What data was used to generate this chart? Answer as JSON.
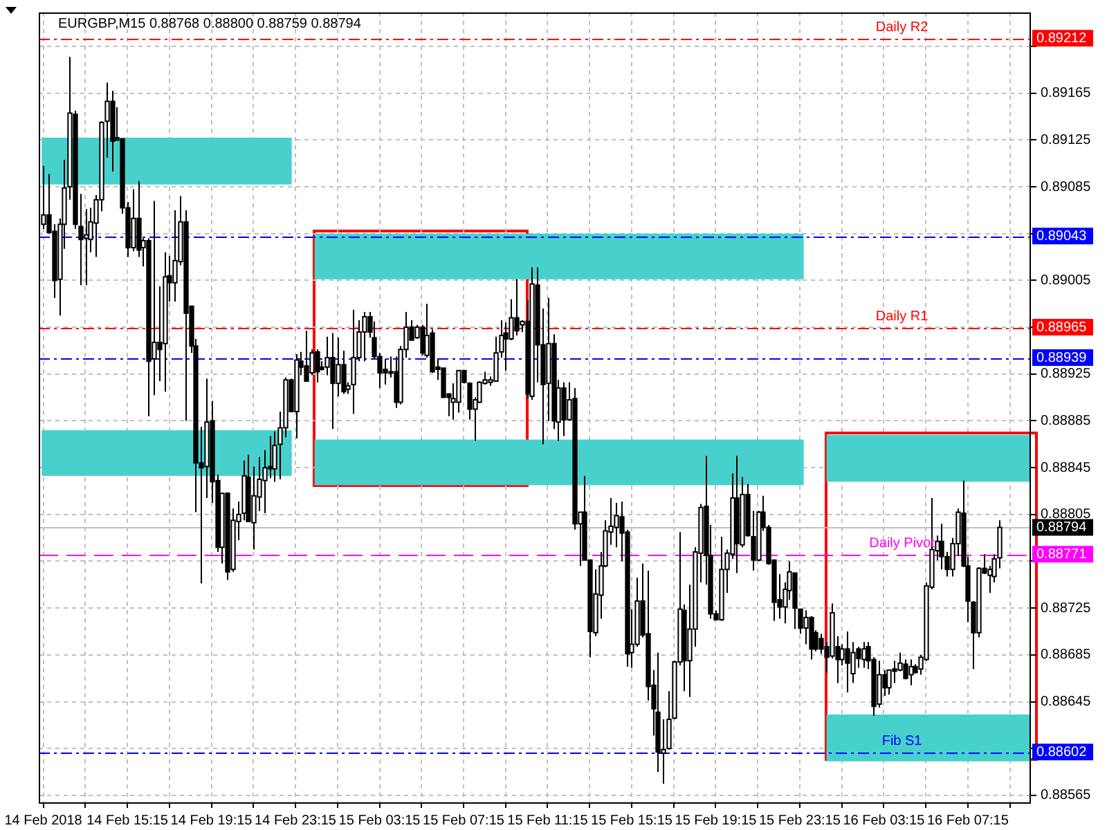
{
  "chart_data": {
    "type": "candlestick",
    "title": "EURGBP,M15 0.88768 0.88800 0.88759 0.88794",
    "x": [
      "2018-02-14T11:15",
      "2018-02-14T11:30",
      "2018-02-14T11:45",
      "2018-02-14T12:00",
      "2018-02-14T12:15",
      "2018-02-14T12:30",
      "2018-02-14T12:45",
      "2018-02-14T13:00",
      "2018-02-14T13:15",
      "2018-02-14T13:30",
      "2018-02-14T13:45",
      "2018-02-14T14:00",
      "2018-02-14T14:15",
      "2018-02-14T14:30",
      "2018-02-14T14:45",
      "2018-02-14T15:00",
      "2018-02-14T15:15",
      "2018-02-14T15:30",
      "2018-02-14T15:45",
      "2018-02-14T16:00",
      "2018-02-14T16:15",
      "2018-02-14T16:30",
      "2018-02-14T16:45",
      "2018-02-14T17:00",
      "2018-02-14T17:15",
      "2018-02-14T17:30",
      "2018-02-14T17:45",
      "2018-02-14T18:00",
      "2018-02-14T18:15",
      "2018-02-14T18:30",
      "2018-02-14T18:45",
      "2018-02-14T19:00",
      "2018-02-14T19:15",
      "2018-02-14T19:30",
      "2018-02-14T19:45",
      "2018-02-14T20:00",
      "2018-02-14T20:15",
      "2018-02-14T20:30",
      "2018-02-14T20:45",
      "2018-02-14T21:00",
      "2018-02-14T21:15",
      "2018-02-14T21:30",
      "2018-02-14T21:45",
      "2018-02-14T22:00",
      "2018-02-14T22:15",
      "2018-02-14T22:30",
      "2018-02-14T22:45",
      "2018-02-14T23:00",
      "2018-02-14T23:15",
      "2018-02-14T23:30",
      "2018-02-14T23:45",
      "2018-02-15T00:00",
      "2018-02-15T00:15",
      "2018-02-15T00:30",
      "2018-02-15T00:45",
      "2018-02-15T01:00",
      "2018-02-15T01:15",
      "2018-02-15T01:30",
      "2018-02-15T01:45",
      "2018-02-15T02:00",
      "2018-02-15T02:15",
      "2018-02-15T02:30",
      "2018-02-15T02:45",
      "2018-02-15T03:00",
      "2018-02-15T03:15",
      "2018-02-15T03:30",
      "2018-02-15T03:45",
      "2018-02-15T04:00",
      "2018-02-15T04:15",
      "2018-02-15T04:30",
      "2018-02-15T04:45",
      "2018-02-15T05:00",
      "2018-02-15T05:15",
      "2018-02-15T05:30",
      "2018-02-15T05:45",
      "2018-02-15T06:00",
      "2018-02-15T06:15",
      "2018-02-15T06:30",
      "2018-02-15T06:45",
      "2018-02-15T07:00",
      "2018-02-15T07:15",
      "2018-02-15T07:30",
      "2018-02-15T07:45",
      "2018-02-15T08:00",
      "2018-02-15T08:15",
      "2018-02-15T08:30",
      "2018-02-15T08:45",
      "2018-02-15T09:00",
      "2018-02-15T09:15",
      "2018-02-15T09:30",
      "2018-02-15T09:45",
      "2018-02-15T10:00",
      "2018-02-15T10:15",
      "2018-02-15T10:30",
      "2018-02-15T10:45",
      "2018-02-15T11:00",
      "2018-02-15T11:15",
      "2018-02-15T11:30",
      "2018-02-15T11:45",
      "2018-02-15T12:00",
      "2018-02-15T12:15",
      "2018-02-15T12:30",
      "2018-02-15T12:45",
      "2018-02-15T13:00",
      "2018-02-15T13:15",
      "2018-02-15T13:30",
      "2018-02-15T13:45",
      "2018-02-15T14:00",
      "2018-02-15T14:15",
      "2018-02-15T14:30",
      "2018-02-15T14:45",
      "2018-02-15T15:00",
      "2018-02-15T15:15",
      "2018-02-15T15:30",
      "2018-02-15T15:45",
      "2018-02-15T16:00",
      "2018-02-15T16:15",
      "2018-02-15T16:30",
      "2018-02-15T16:45",
      "2018-02-15T17:00",
      "2018-02-15T17:15",
      "2018-02-15T17:30",
      "2018-02-15T17:45",
      "2018-02-15T18:00",
      "2018-02-15T18:15",
      "2018-02-15T18:30",
      "2018-02-15T18:45",
      "2018-02-15T19:00",
      "2018-02-15T19:15",
      "2018-02-15T19:30",
      "2018-02-15T19:45",
      "2018-02-15T20:00",
      "2018-02-15T20:15",
      "2018-02-15T20:30",
      "2018-02-15T20:45",
      "2018-02-15T21:00",
      "2018-02-15T21:15",
      "2018-02-15T21:30",
      "2018-02-15T21:45",
      "2018-02-15T22:00",
      "2018-02-15T22:15",
      "2018-02-15T22:30",
      "2018-02-15T22:45",
      "2018-02-15T23:00",
      "2018-02-15T23:15",
      "2018-02-15T23:30",
      "2018-02-15T23:45",
      "2018-02-16T00:00",
      "2018-02-16T00:15",
      "2018-02-16T00:30",
      "2018-02-16T00:45",
      "2018-02-16T01:00",
      "2018-02-16T01:15",
      "2018-02-16T01:30",
      "2018-02-16T01:45",
      "2018-02-16T02:00",
      "2018-02-16T02:15",
      "2018-02-16T02:30",
      "2018-02-16T02:45",
      "2018-02-16T03:00",
      "2018-02-16T03:15",
      "2018-02-16T03:30",
      "2018-02-16T03:45",
      "2018-02-16T04:00",
      "2018-02-16T04:15",
      "2018-02-16T04:30",
      "2018-02-16T04:45",
      "2018-02-16T05:00",
      "2018-02-16T05:15",
      "2018-02-16T05:30",
      "2018-02-16T05:45",
      "2018-02-16T06:00",
      "2018-02-16T06:15",
      "2018-02-16T06:30",
      "2018-02-16T06:45",
      "2018-02-16T07:00",
      "2018-02-16T07:15",
      "2018-02-16T07:30",
      "2018-02-16T07:45",
      "2018-02-16T08:00",
      "2018-02-16T08:15",
      "2018-02-16T08:30",
      "2018-02-16T08:45"
    ],
    "ohlc": [
      [
        0.89053,
        0.89103,
        0.89049,
        0.89061
      ],
      [
        0.89061,
        0.89096,
        0.89045,
        0.89046
      ],
      [
        0.89047,
        0.89053,
        0.8899,
        0.89005
      ],
      [
        0.89006,
        0.89058,
        0.88975,
        0.89053
      ],
      [
        0.89053,
        0.89108,
        0.89032,
        0.89084
      ],
      [
        0.89085,
        0.89196,
        0.89074,
        0.89148
      ],
      [
        0.89147,
        0.8915,
        0.89049,
        0.89053
      ],
      [
        0.89051,
        0.89079,
        0.89001,
        0.8904
      ],
      [
        0.89041,
        0.89066,
        0.89001,
        0.89044
      ],
      [
        0.8904,
        0.89067,
        0.89029,
        0.89055
      ],
      [
        0.89054,
        0.89078,
        0.89025,
        0.89074
      ],
      [
        0.89074,
        0.89141,
        0.89064,
        0.8914
      ],
      [
        0.89141,
        0.89174,
        0.8911,
        0.89158
      ],
      [
        0.89158,
        0.89167,
        0.89098,
        0.89124
      ],
      [
        0.89127,
        0.89153,
        0.89125,
        0.89125
      ],
      [
        0.89126,
        0.89126,
        0.89062,
        0.89067
      ],
      [
        0.89067,
        0.89072,
        0.89025,
        0.89033
      ],
      [
        0.89033,
        0.89083,
        0.8903,
        0.89058
      ],
      [
        0.89058,
        0.8909,
        0.89025,
        0.89031
      ],
      [
        0.89033,
        0.89041,
        0.89017,
        0.89039
      ],
      [
        0.89039,
        0.89041,
        0.88889,
        0.88936
      ],
      [
        0.88938,
        0.89073,
        0.88907,
        0.88952
      ],
      [
        0.88952,
        0.89,
        0.88919,
        0.88946
      ],
      [
        0.88951,
        0.89029,
        0.8891,
        0.89008
      ],
      [
        0.89009,
        0.89026,
        0.88987,
        0.89003
      ],
      [
        0.89003,
        0.89065,
        0.88987,
        0.89022
      ],
      [
        0.89021,
        0.89077,
        0.89018,
        0.89055
      ],
      [
        0.89055,
        0.89065,
        0.88885,
        0.88977
      ],
      [
        0.88983,
        0.88983,
        0.88943,
        0.88949
      ],
      [
        0.88949,
        0.88955,
        0.88807,
        0.88849
      ],
      [
        0.88849,
        0.8888,
        0.88746,
        0.88845
      ],
      [
        0.88846,
        0.88921,
        0.88819,
        0.88884
      ],
      [
        0.88885,
        0.88902,
        0.88815,
        0.88833
      ],
      [
        0.88834,
        0.88839,
        0.88773,
        0.88777
      ],
      [
        0.88777,
        0.88823,
        0.88763,
        0.88823
      ],
      [
        0.88823,
        0.88824,
        0.88749,
        0.88756
      ],
      [
        0.88758,
        0.8881,
        0.88756,
        0.888
      ],
      [
        0.88799,
        0.88816,
        0.88783,
        0.88805
      ],
      [
        0.88806,
        0.88851,
        0.888,
        0.88838
      ],
      [
        0.88837,
        0.88856,
        0.88799,
        0.88799
      ],
      [
        0.88798,
        0.88846,
        0.88775,
        0.88821
      ],
      [
        0.8882,
        0.88854,
        0.88808,
        0.88835
      ],
      [
        0.88834,
        0.8886,
        0.88806,
        0.88845
      ],
      [
        0.88846,
        0.88872,
        0.88836,
        0.88844
      ],
      [
        0.88844,
        0.88876,
        0.88833,
        0.88864
      ],
      [
        0.88865,
        0.88893,
        0.88835,
        0.88879
      ],
      [
        0.88879,
        0.88922,
        0.88871,
        0.8892
      ],
      [
        0.8892,
        0.88921,
        0.88893,
        0.88893
      ],
      [
        0.88893,
        0.88942,
        0.8887,
        0.88937
      ],
      [
        0.88936,
        0.88944,
        0.88924,
        0.88931
      ],
      [
        0.88932,
        0.88962,
        0.88919,
        0.88919
      ],
      [
        0.88926,
        0.88946,
        0.88924,
        0.88943
      ],
      [
        0.88944,
        0.88946,
        0.88918,
        0.88927
      ],
      [
        0.88931,
        0.88936,
        0.88928,
        0.88929
      ],
      [
        0.88931,
        0.88957,
        0.88924,
        0.88939
      ],
      [
        0.88939,
        0.8896,
        0.88878,
        0.88917
      ],
      [
        0.88917,
        0.88956,
        0.88906,
        0.88933
      ],
      [
        0.88933,
        0.88945,
        0.88908,
        0.8891
      ],
      [
        0.88912,
        0.88918,
        0.88908,
        0.88915
      ],
      [
        0.88916,
        0.8898,
        0.88891,
        0.88939
      ],
      [
        0.88939,
        0.88971,
        0.88936,
        0.88961
      ],
      [
        0.88961,
        0.88978,
        0.88936,
        0.88974
      ],
      [
        0.88974,
        0.88978,
        0.88956,
        0.88961
      ],
      [
        0.88956,
        0.8897,
        0.88938,
        0.8894
      ],
      [
        0.8894,
        0.88943,
        0.88913,
        0.88926
      ],
      [
        0.88929,
        0.88938,
        0.88916,
        0.88926
      ],
      [
        0.88927,
        0.8894,
        0.88922,
        0.88926
      ],
      [
        0.88927,
        0.8894,
        0.88896,
        0.88901
      ],
      [
        0.88901,
        0.88949,
        0.88899,
        0.88946
      ],
      [
        0.88946,
        0.88978,
        0.88939,
        0.88965
      ],
      [
        0.88965,
        0.88971,
        0.88954,
        0.88954
      ],
      [
        0.88956,
        0.88967,
        0.88955,
        0.88965
      ],
      [
        0.88965,
        0.88967,
        0.88941,
        0.88943
      ],
      [
        0.88941,
        0.88985,
        0.88939,
        0.88958
      ],
      [
        0.8896,
        0.88963,
        0.88926,
        0.88927
      ],
      [
        0.88931,
        0.88938,
        0.8892,
        0.88929
      ],
      [
        0.8893,
        0.8893,
        0.88905,
        0.88905
      ],
      [
        0.88908,
        0.88908,
        0.88889,
        0.88905
      ],
      [
        0.88901,
        0.88917,
        0.88886,
        0.88904
      ],
      [
        0.88901,
        0.88928,
        0.88892,
        0.88928
      ],
      [
        0.88928,
        0.88928,
        0.88917,
        0.88918
      ],
      [
        0.88917,
        0.88918,
        0.88886,
        0.88895
      ],
      [
        0.88895,
        0.88905,
        0.88868,
        0.88903
      ],
      [
        0.88901,
        0.88919,
        0.889,
        0.88918
      ],
      [
        0.88917,
        0.88927,
        0.88916,
        0.8892
      ],
      [
        0.88918,
        0.88923,
        0.88915,
        0.8892
      ],
      [
        0.88919,
        0.88957,
        0.88919,
        0.88943
      ],
      [
        0.88944,
        0.88971,
        0.88939,
        0.88958
      ],
      [
        0.8896,
        0.88969,
        0.88928,
        0.88955
      ],
      [
        0.88955,
        0.88989,
        0.88954,
        0.88973
      ],
      [
        0.88973,
        0.89006,
        0.88958,
        0.88962
      ],
      [
        0.88967,
        0.88971,
        0.88961,
        0.8897
      ],
      [
        0.8897,
        0.88988,
        0.88904,
        0.88908
      ],
      [
        0.88906,
        0.89016,
        0.88903,
        0.89002
      ],
      [
        0.89001,
        0.89016,
        0.88918,
        0.8895
      ],
      [
        0.8895,
        0.88981,
        0.88865,
        0.88916
      ],
      [
        0.88917,
        0.8899,
        0.88885,
        0.88951
      ],
      [
        0.88951,
        0.88959,
        0.88878,
        0.88885
      ],
      [
        0.88884,
        0.8892,
        0.88868,
        0.88913
      ],
      [
        0.88913,
        0.88918,
        0.88872,
        0.88886
      ],
      [
        0.88886,
        0.88918,
        0.88885,
        0.88903
      ],
      [
        0.88904,
        0.88913,
        0.88792,
        0.88797
      ],
      [
        0.88797,
        0.88807,
        0.88761,
        0.88807
      ],
      [
        0.88807,
        0.88838,
        0.88766,
        0.88766
      ],
      [
        0.88766,
        0.88766,
        0.88683,
        0.88705
      ],
      [
        0.88704,
        0.88758,
        0.88701,
        0.88737
      ],
      [
        0.88736,
        0.88773,
        0.88716,
        0.88761
      ],
      [
        0.88761,
        0.888,
        0.8876,
        0.88791
      ],
      [
        0.8879,
        0.88819,
        0.88779,
        0.88795
      ],
      [
        0.88794,
        0.88815,
        0.88777,
        0.88804
      ],
      [
        0.88803,
        0.88816,
        0.88765,
        0.88789
      ],
      [
        0.8879,
        0.88792,
        0.88675,
        0.88686
      ],
      [
        0.88687,
        0.88724,
        0.88674,
        0.88694
      ],
      [
        0.88694,
        0.88751,
        0.88692,
        0.88731
      ],
      [
        0.88731,
        0.88763,
        0.887,
        0.88702
      ],
      [
        0.88703,
        0.88757,
        0.88646,
        0.88658
      ],
      [
        0.88659,
        0.88672,
        0.88616,
        0.88639
      ],
      [
        0.88636,
        0.88687,
        0.88585,
        0.88602
      ],
      [
        0.88601,
        0.8863,
        0.88575,
        0.88604
      ],
      [
        0.88605,
        0.88654,
        0.88604,
        0.8863
      ],
      [
        0.88631,
        0.8868,
        0.8863,
        0.88679
      ],
      [
        0.88679,
        0.8879,
        0.88676,
        0.88724
      ],
      [
        0.88723,
        0.88728,
        0.88654,
        0.8868
      ],
      [
        0.8868,
        0.88745,
        0.88649,
        0.88707
      ],
      [
        0.88707,
        0.88777,
        0.88692,
        0.88773
      ],
      [
        0.88772,
        0.88814,
        0.88747,
        0.88811
      ],
      [
        0.88812,
        0.88855,
        0.88745,
        0.8877
      ],
      [
        0.8877,
        0.88796,
        0.88716,
        0.8872
      ],
      [
        0.8872,
        0.88723,
        0.88715,
        0.88715
      ],
      [
        0.88715,
        0.88786,
        0.88714,
        0.88758
      ],
      [
        0.88758,
        0.88775,
        0.88738,
        0.88772
      ],
      [
        0.88771,
        0.8884,
        0.88767,
        0.88819
      ],
      [
        0.88819,
        0.88855,
        0.88755,
        0.8878
      ],
      [
        0.88779,
        0.88837,
        0.88777,
        0.88822
      ],
      [
        0.88822,
        0.88831,
        0.88786,
        0.88787
      ],
      [
        0.88786,
        0.88808,
        0.88757,
        0.88766
      ],
      [
        0.88766,
        0.88808,
        0.88765,
        0.88807
      ],
      [
        0.88807,
        0.88821,
        0.88791,
        0.88794
      ],
      [
        0.88794,
        0.88796,
        0.88762,
        0.88763
      ],
      [
        0.88766,
        0.88766,
        0.88714,
        0.8873
      ],
      [
        0.88732,
        0.88754,
        0.88716,
        0.88726
      ],
      [
        0.88726,
        0.88747,
        0.88712,
        0.88741
      ],
      [
        0.8874,
        0.88765,
        0.88732,
        0.88756
      ],
      [
        0.88755,
        0.88755,
        0.88707,
        0.88725
      ],
      [
        0.88724,
        0.88724,
        0.88703,
        0.88708
      ],
      [
        0.88708,
        0.88723,
        0.88694,
        0.88717
      ],
      [
        0.88717,
        0.88718,
        0.88681,
        0.8869
      ],
      [
        0.88704,
        0.88706,
        0.88688,
        0.8869
      ],
      [
        0.88699,
        0.88703,
        0.88686,
        0.8869
      ],
      [
        0.88692,
        0.88696,
        0.8867,
        0.88683
      ],
      [
        0.88684,
        0.88729,
        0.88682,
        0.88721
      ],
      [
        0.88692,
        0.88701,
        0.88661,
        0.88681
      ],
      [
        0.88681,
        0.88694,
        0.88676,
        0.8869
      ],
      [
        0.8869,
        0.88705,
        0.88653,
        0.88678
      ],
      [
        0.88669,
        0.88696,
        0.88661,
        0.88687
      ],
      [
        0.8869,
        0.88692,
        0.88674,
        0.88682
      ],
      [
        0.88681,
        0.88696,
        0.88674,
        0.8869
      ],
      [
        0.88692,
        0.88696,
        0.88673,
        0.8868
      ],
      [
        0.88681,
        0.88683,
        0.88633,
        0.88641
      ],
      [
        0.88643,
        0.8868,
        0.8864,
        0.88668
      ],
      [
        0.88668,
        0.88672,
        0.8865,
        0.88657
      ],
      [
        0.88657,
        0.88672,
        0.88651,
        0.88672
      ],
      [
        0.88673,
        0.8868,
        0.88661,
        0.88671
      ],
      [
        0.88672,
        0.88687,
        0.88671,
        0.88678
      ],
      [
        0.88677,
        0.88681,
        0.88664,
        0.88665
      ],
      [
        0.88668,
        0.88681,
        0.88659,
        0.88675
      ],
      [
        0.88675,
        0.88677,
        0.88669,
        0.8867
      ],
      [
        0.88673,
        0.88685,
        0.88668,
        0.88683
      ],
      [
        0.88681,
        0.88747,
        0.8868,
        0.88744
      ],
      [
        0.88743,
        0.88819,
        0.88741,
        0.88775
      ],
      [
        0.88774,
        0.88787,
        0.88766,
        0.88782
      ],
      [
        0.88782,
        0.88797,
        0.88758,
        0.88769
      ],
      [
        0.88769,
        0.88773,
        0.88752,
        0.88758
      ],
      [
        0.88758,
        0.88785,
        0.88752,
        0.8878
      ],
      [
        0.8878,
        0.8881,
        0.8877,
        0.88807
      ],
      [
        0.88806,
        0.88834,
        0.8876,
        0.88761
      ],
      [
        0.88761,
        0.88769,
        0.88713,
        0.88731
      ],
      [
        0.8873,
        0.88731,
        0.88673,
        0.88704
      ],
      [
        0.88704,
        0.8876,
        0.887,
        0.88759
      ],
      [
        0.88759,
        0.88771,
        0.88754,
        0.88755
      ],
      [
        0.88753,
        0.88761,
        0.88738,
        0.88758
      ],
      [
        0.88752,
        0.88771,
        0.88747,
        0.88767
      ],
      [
        0.88768,
        0.888,
        0.88759,
        0.88794
      ]
    ],
    "xlim": [
      "2018-02-14T11:02",
      "2018-02-16T10:15"
    ],
    "xticks": [
      {
        "value": "2018-02-14T11:15",
        "label": "14 Feb 2018"
      },
      {
        "value": "2018-02-14T13:15",
        "label": null
      },
      {
        "value": "2018-02-14T15:15",
        "label": "14 Feb 15:15"
      },
      {
        "value": "2018-02-14T17:15",
        "label": null
      },
      {
        "value": "2018-02-14T19:15",
        "label": "14 Feb 19:15"
      },
      {
        "value": "2018-02-14T21:15",
        "label": null
      },
      {
        "value": "2018-02-14T23:15",
        "label": "14 Feb 23:15"
      },
      {
        "value": "2018-02-15T01:15",
        "label": null
      },
      {
        "value": "2018-02-15T03:15",
        "label": "15 Feb 03:15"
      },
      {
        "value": "2018-02-15T05:15",
        "label": null
      },
      {
        "value": "2018-02-15T07:15",
        "label": "15 Feb 07:15"
      },
      {
        "value": "2018-02-15T09:15",
        "label": null
      },
      {
        "value": "2018-02-15T11:15",
        "label": "15 Feb 11:15"
      },
      {
        "value": "2018-02-15T13:15",
        "label": null
      },
      {
        "value": "2018-02-15T15:15",
        "label": "15 Feb 15:15"
      },
      {
        "value": "2018-02-15T17:15",
        "label": null
      },
      {
        "value": "2018-02-15T19:15",
        "label": "15 Feb 19:15"
      },
      {
        "value": "2018-02-15T21:15",
        "label": null
      },
      {
        "value": "2018-02-15T23:15",
        "label": "15 Feb 23:15"
      },
      {
        "value": "2018-02-16T01:15",
        "label": null
      },
      {
        "value": "2018-02-16T03:15",
        "label": "16 Feb 03:15"
      },
      {
        "value": "2018-02-16T05:15",
        "label": null
      },
      {
        "value": "2018-02-16T07:15",
        "label": "16 Feb 07:15"
      },
      {
        "value": "2018-02-16T09:15",
        "label": null
      }
    ],
    "ylim": [
      0.88559,
      0.89234
    ],
    "yticks": [
      0.88565,
      {
        "value": 0.88605,
        "label": null
      },
      0.88645,
      0.88685,
      0.88725,
      {
        "value": 0.88765,
        "label": null
      },
      0.88805,
      0.88845,
      0.88885,
      0.88925,
      {
        "value": 0.88965,
        "label": null
      },
      0.89005,
      {
        "value": 0.89045,
        "label": null
      },
      0.89085,
      0.89125,
      0.89165,
      {
        "value": 0.89205,
        "label": null
      }
    ],
    "grid": true,
    "ref_lines": [
      {
        "axis": "y",
        "value": 0.89212,
        "label": "Daily R2",
        "color": "#ff0000",
        "line_style": "dashdot"
      },
      {
        "axis": "y",
        "value": 0.89043,
        "label": null,
        "color": "#0000ff",
        "line_style": "dashdot"
      },
      {
        "axis": "y",
        "value": 0.88965,
        "label": "Daily R1",
        "color": "#ff0000",
        "line_style": "dashdot"
      },
      {
        "axis": "y",
        "value": 0.88939,
        "label": null,
        "color": "#0000ff",
        "line_style": "dashdot"
      },
      {
        "axis": "y",
        "value": 0.88794,
        "label": null,
        "color": "#c0c0c0",
        "line_style": "solid"
      },
      {
        "axis": "y",
        "value": 0.88771,
        "label": "Daily Pivot",
        "color": "#ff00ff",
        "line_style": "dashed"
      },
      {
        "axis": "y",
        "value": 0.88602,
        "label": "Fib S1",
        "color": "#0000ff",
        "line_style": "dashdot"
      }
    ],
    "annotations": [
      "0.89212",
      "0.89043",
      "0.88965",
      "0.88939",
      "0.88794",
      "0.88771",
      "0.88602"
    ],
    "bands": [
      {
        "axis": "y",
        "from": 0.89087,
        "to": 0.89127,
        "color": "#48d1cc"
      },
      {
        "axis": "y",
        "from": 0.88838,
        "to": 0.88877,
        "color": "#48d1cc"
      },
      {
        "axis": "y",
        "from": 0.89006,
        "to": 0.89045,
        "color": "#48d1cc"
      },
      {
        "axis": "y",
        "from": 0.8883,
        "to": 0.88869,
        "color": "#48d1cc"
      },
      {
        "axis": "y",
        "from": 0.88833,
        "to": 0.88873,
        "color": "#48d1cc"
      },
      {
        "axis": "y",
        "from": 0.88594,
        "to": 0.88634,
        "color": "#48d1cc"
      }
    ]
  }
}
